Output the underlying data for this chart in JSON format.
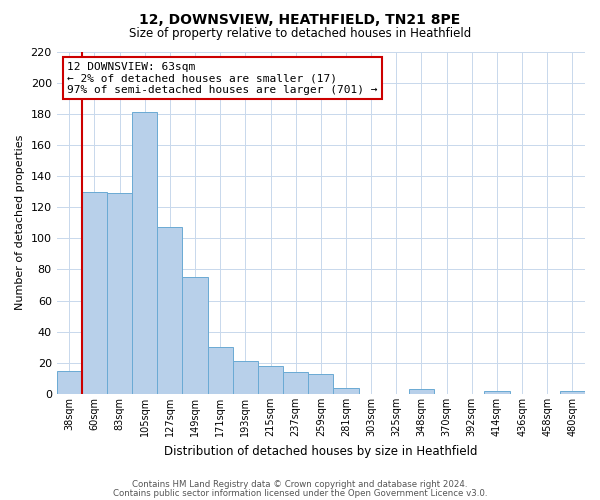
{
  "title": "12, DOWNSVIEW, HEATHFIELD, TN21 8PE",
  "subtitle": "Size of property relative to detached houses in Heathfield",
  "xlabel": "Distribution of detached houses by size in Heathfield",
  "ylabel": "Number of detached properties",
  "bar_color": "#b8d0ea",
  "bar_edge_color": "#6aaad4",
  "background_color": "#ffffff",
  "grid_color": "#c8d8ec",
  "annotation_box_color": "#cc0000",
  "vline_color": "#cc0000",
  "categories": [
    "38sqm",
    "60sqm",
    "83sqm",
    "105sqm",
    "127sqm",
    "149sqm",
    "171sqm",
    "193sqm",
    "215sqm",
    "237sqm",
    "259sqm",
    "281sqm",
    "303sqm",
    "325sqm",
    "348sqm",
    "370sqm",
    "392sqm",
    "414sqm",
    "436sqm",
    "458sqm",
    "480sqm"
  ],
  "values": [
    15,
    130,
    129,
    181,
    107,
    75,
    30,
    21,
    18,
    14,
    13,
    4,
    0,
    0,
    3,
    0,
    0,
    2,
    0,
    0,
    2
  ],
  "ylim": [
    0,
    220
  ],
  "yticks": [
    0,
    20,
    40,
    60,
    80,
    100,
    120,
    140,
    160,
    180,
    200,
    220
  ],
  "annotation_text": "12 DOWNSVIEW: 63sqm\n← 2% of detached houses are smaller (17)\n97% of semi-detached houses are larger (701) →",
  "footer_line1": "Contains HM Land Registry data © Crown copyright and database right 2024.",
  "footer_line2": "Contains public sector information licensed under the Open Government Licence v3.0."
}
